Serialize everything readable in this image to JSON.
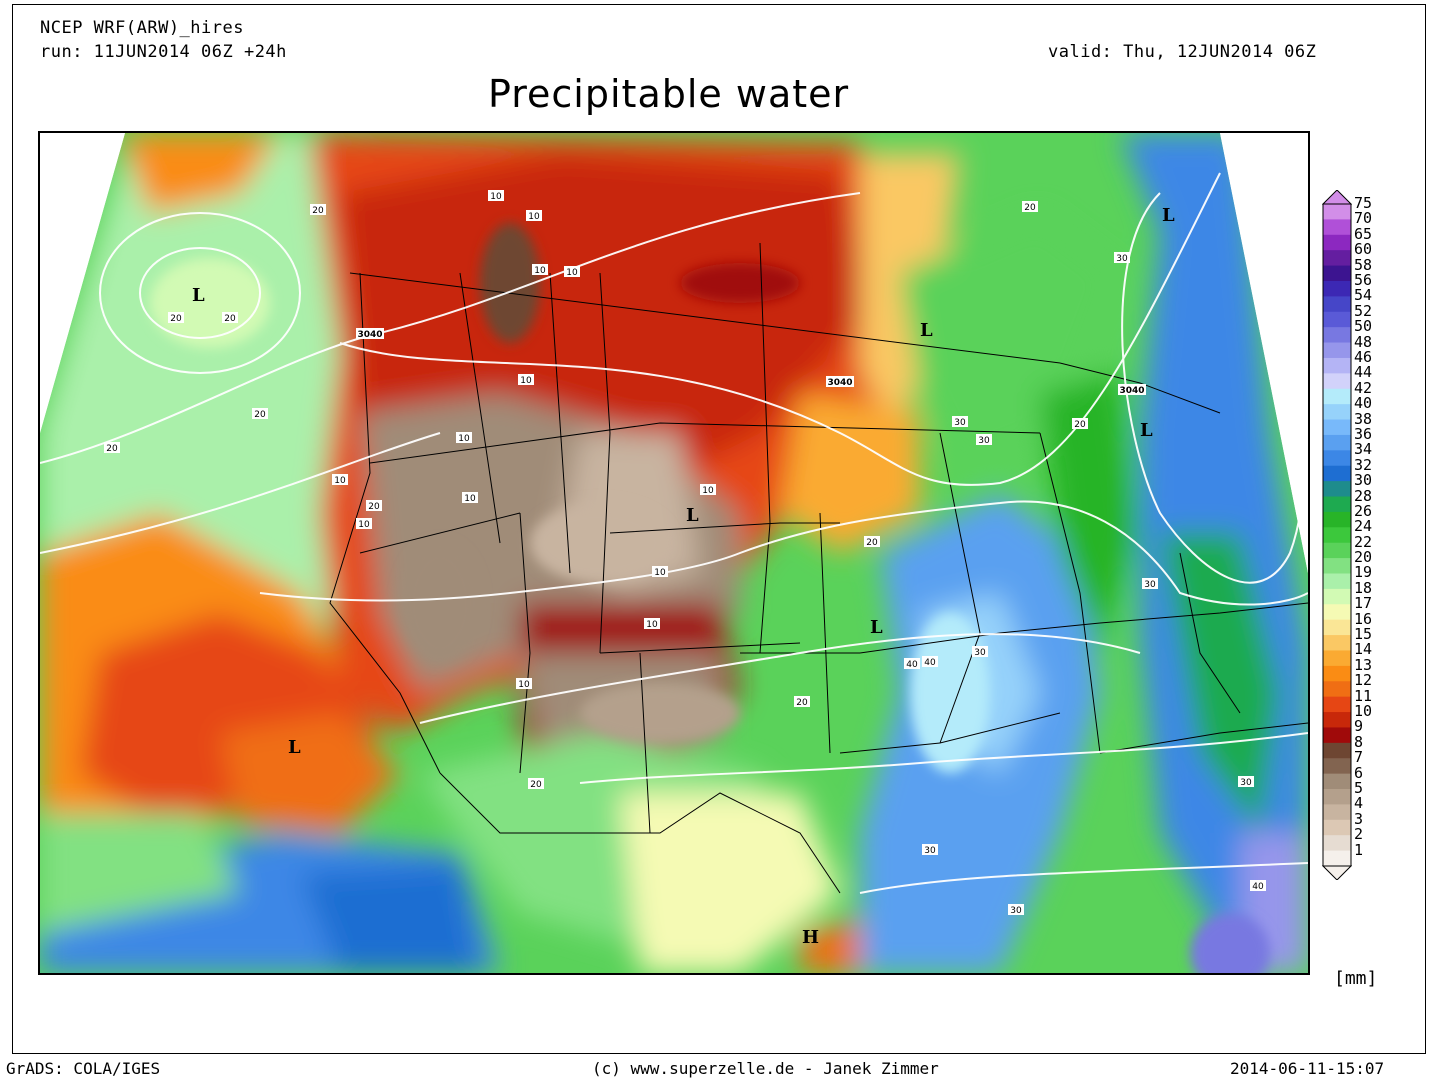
{
  "header": {
    "model": "NCEP WRF(ARW)_hires",
    "run": "run: 11JUN2014 06Z +24h",
    "valid": "valid: Thu, 12JUN2014 06Z",
    "title": "Precipitable water"
  },
  "colorbar": {
    "unit": "[mm]",
    "levels": [
      "75",
      "70",
      "65",
      "60",
      "58",
      "56",
      "54",
      "52",
      "50",
      "48",
      "46",
      "44",
      "42",
      "40",
      "38",
      "36",
      "34",
      "32",
      "30",
      "28",
      "26",
      "24",
      "22",
      "20",
      "19",
      "18",
      "17",
      "16",
      "15",
      "14",
      "13",
      "12",
      "11",
      "10",
      "9",
      "8",
      "7",
      "6",
      "5",
      "4",
      "3",
      "2",
      "1"
    ],
    "colors": [
      "#d28ee8",
      "#b050d8",
      "#8c28c0",
      "#641ea0",
      "#3c1490",
      "#3c28b4",
      "#4646c8",
      "#5a5ad7",
      "#7878e1",
      "#9696eb",
      "#b4b4f5",
      "#d2d2fa",
      "#b4ebfa",
      "#96d2fa",
      "#78b9fa",
      "#5aa0f0",
      "#3c87e6",
      "#1e6ed2",
      "#1e8c8c",
      "#1eaa50",
      "#28b428",
      "#3cc83c",
      "#5ad25a",
      "#82e182",
      "#aaf0aa",
      "#d2fab4",
      "#f5fab4",
      "#fae696",
      "#fac864",
      "#faaa32",
      "#fa8c14",
      "#f06e14",
      "#e64614",
      "#c8280a",
      "#a00a0a",
      "#6e4632",
      "#826450",
      "#a08c78",
      "#b4a08c",
      "#c8b4a0",
      "#dcc8b4",
      "#e6dcd2",
      "#f5f0eb"
    ]
  },
  "map_labels": {
    "lows": [
      "L",
      "L",
      "L",
      "L",
      "L",
      "L",
      "L",
      "L"
    ],
    "highs": [
      "H"
    ],
    "contours": [
      "10",
      "10",
      "10",
      "10",
      "10",
      "10",
      "10",
      "10",
      "10",
      "10",
      "10",
      "10",
      "10",
      "20",
      "20",
      "20",
      "20",
      "20",
      "20",
      "20",
      "20",
      "20",
      "20",
      "20",
      "30",
      "30",
      "30",
      "30",
      "30",
      "30",
      "30",
      "30",
      "40",
      "40",
      "40",
      "3040",
      "3040",
      "3040"
    ]
  },
  "footer": {
    "left": "GrADS: COLA/IGES",
    "center": "(c) www.superzelle.de - Janek Zimmer",
    "right": "2014-06-11-15:07"
  }
}
